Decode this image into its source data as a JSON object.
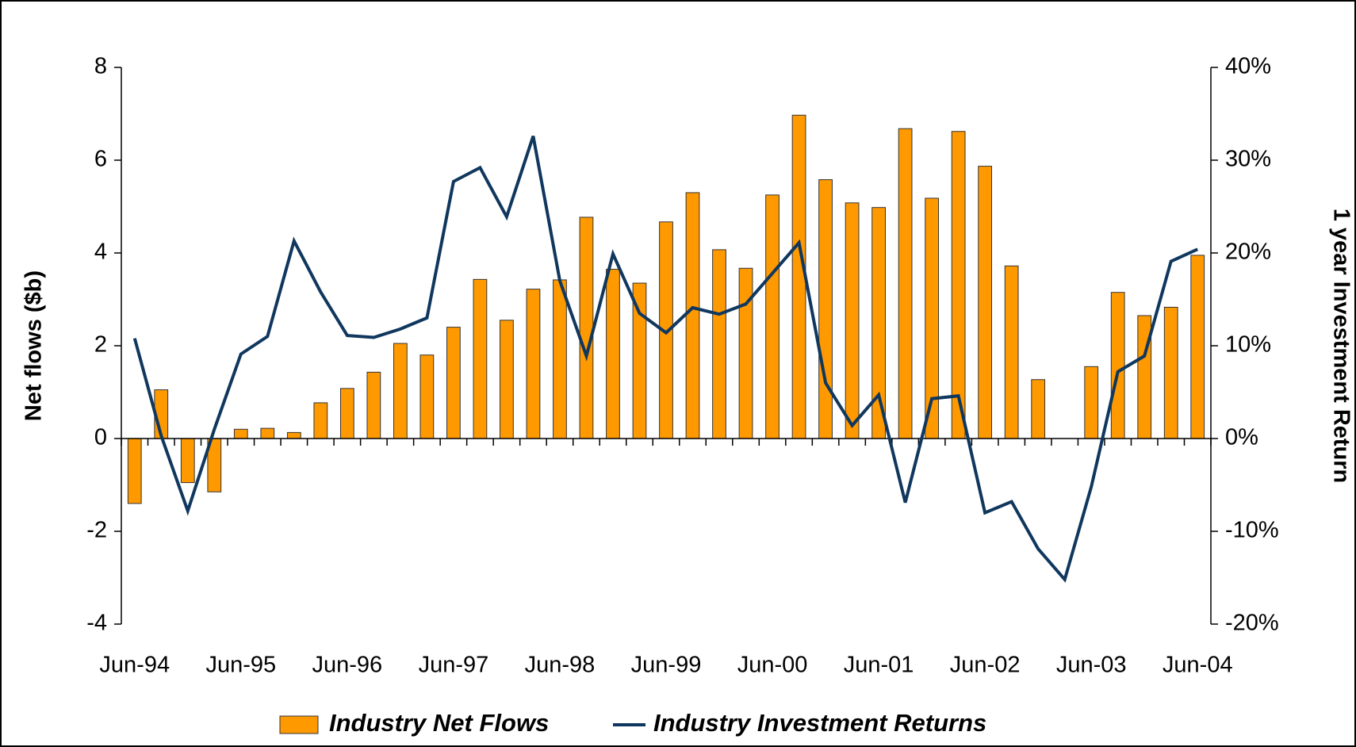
{
  "chart_data": {
    "type": "bar_line",
    "categories": [
      "Jun-94",
      null,
      null,
      null,
      "Jun-95",
      null,
      null,
      null,
      "Jun-96",
      null,
      null,
      null,
      "Jun-97",
      null,
      null,
      null,
      "Jun-98",
      null,
      null,
      null,
      "Jun-99",
      null,
      null,
      null,
      "Jun-00",
      null,
      null,
      null,
      "Jun-01",
      null,
      null,
      null,
      "Jun-02",
      null,
      null,
      null,
      "Jun-03",
      null,
      null,
      null,
      "Jun-04"
    ],
    "series": [
      {
        "name": "Industry Net Flows",
        "type": "bar",
        "color": "#ff9900",
        "axis": "y",
        "values": [
          -1.4,
          1.05,
          -0.95,
          -1.15,
          0.2,
          0.22,
          0.13,
          0.77,
          1.08,
          1.43,
          2.05,
          1.8,
          2.4,
          3.43,
          2.55,
          3.22,
          3.42,
          4.77,
          3.65,
          3.35,
          4.67,
          5.3,
          4.07,
          3.67,
          5.25,
          6.97,
          5.58,
          5.08,
          4.98,
          6.68,
          5.18,
          6.62,
          5.87,
          3.72,
          1.27,
          null,
          1.55,
          3.15,
          2.65,
          2.83,
          3.95
        ]
      },
      {
        "name": "Industry Investment Returns",
        "type": "line",
        "color": "#10375e",
        "axis": "y2",
        "values": [
          10.8,
          0.3,
          -7.8,
          1,
          9.1,
          11,
          21.3,
          15.8,
          11.1,
          10.9,
          11.8,
          13,
          27.7,
          29.2,
          23.9,
          32.6,
          17,
          8.9,
          19.9,
          13.5,
          11.4,
          14.1,
          13.4,
          14.5,
          17.8,
          21.1,
          6,
          1.4,
          4.7,
          -6.9,
          4.3,
          4.6,
          -8,
          -6.8,
          -11.9,
          -15.2,
          -5.2,
          7.2,
          8.9,
          19.1,
          20.4
        ]
      }
    ],
    "y_label": "Net flows ($b)",
    "y2_label": "1 year Investment Return",
    "ylim": [
      -4,
      8
    ],
    "yticks": [
      -4,
      -2,
      0,
      2,
      4,
      6,
      8
    ],
    "y2lim": [
      -20,
      40
    ],
    "y2ticks": [
      {
        "value": -20,
        "label": "-20%"
      },
      {
        "value": -10,
        "label": "-10%"
      },
      {
        "value": 0,
        "label": "0%"
      },
      {
        "value": 10,
        "label": "10%"
      },
      {
        "value": 20,
        "label": "20%"
      },
      {
        "value": 30,
        "label": "30%"
      },
      {
        "value": 40,
        "label": "40%"
      }
    ],
    "legend": "bottom"
  }
}
